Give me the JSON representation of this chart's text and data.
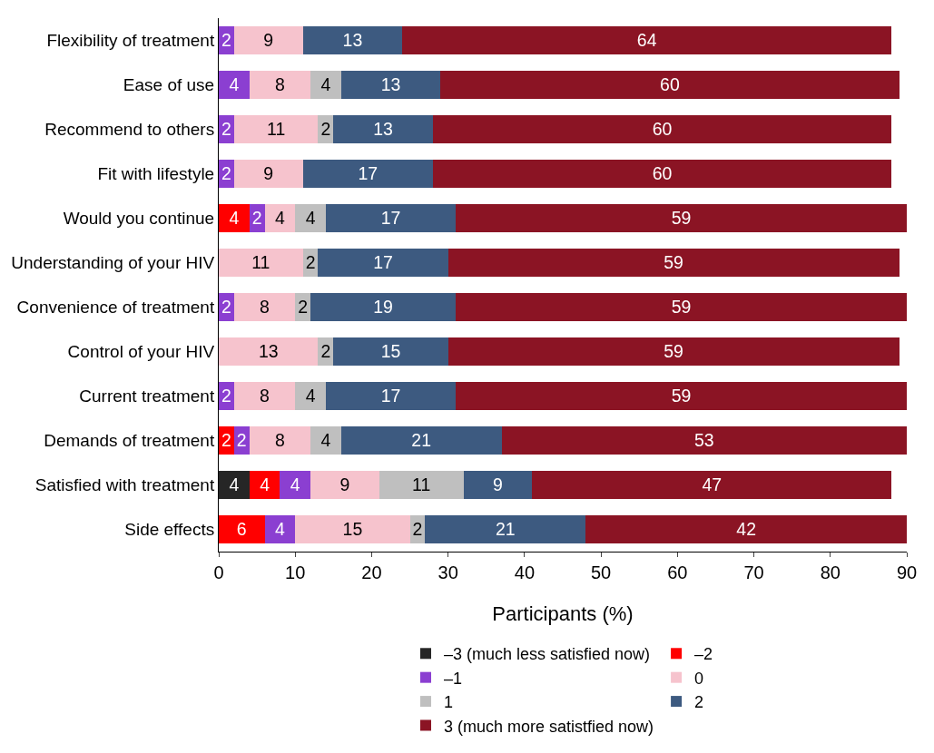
{
  "chart_data": {
    "type": "bar",
    "orientation": "horizontal",
    "stacked": true,
    "xlabel": "Participants (%)",
    "categories": [
      "Flexibility of treatment",
      "Ease of use",
      "Recommend to others",
      "Fit with lifestyle",
      "Would you continue",
      "Understanding of your HIV",
      "Convenience of treatment",
      "Control of your HIV",
      "Current treatment",
      "Demands of treatment",
      "Satisfied with treatment",
      "Side effects"
    ],
    "series": [
      {
        "name": "–3 (much less satisfied now)",
        "color": "#262626",
        "values": [
          null,
          null,
          null,
          null,
          null,
          null,
          null,
          null,
          null,
          null,
          4,
          null
        ]
      },
      {
        "name": "–2",
        "color": "#ff0000",
        "values": [
          null,
          null,
          null,
          null,
          4,
          null,
          null,
          null,
          null,
          2,
          4,
          6
        ]
      },
      {
        "name": "–1",
        "color": "#8b3fd1",
        "values": [
          2,
          4,
          2,
          2,
          2,
          null,
          2,
          null,
          2,
          2,
          4,
          4
        ]
      },
      {
        "name": "0",
        "color": "#f6c3cd",
        "values": [
          9,
          8,
          11,
          9,
          4,
          11,
          8,
          13,
          8,
          8,
          9,
          15
        ]
      },
      {
        "name": "1",
        "color": "#bfbfbf",
        "values": [
          null,
          4,
          2,
          null,
          4,
          2,
          2,
          2,
          4,
          4,
          11,
          2
        ]
      },
      {
        "name": "2",
        "color": "#3d5a80",
        "values": [
          13,
          13,
          13,
          17,
          17,
          17,
          19,
          15,
          17,
          21,
          9,
          21
        ]
      },
      {
        "name": "3 (much more satistfied now)",
        "color": "#8b1424",
        "values": [
          64,
          60,
          60,
          60,
          59,
          59,
          59,
          59,
          59,
          53,
          47,
          42
        ]
      }
    ],
    "xlim": [
      0,
      90
    ],
    "xticks": [
      0,
      10,
      20,
      30,
      40,
      50,
      60,
      70,
      80,
      90
    ],
    "grid": false,
    "legend": "bottom",
    "data_labels": true
  }
}
